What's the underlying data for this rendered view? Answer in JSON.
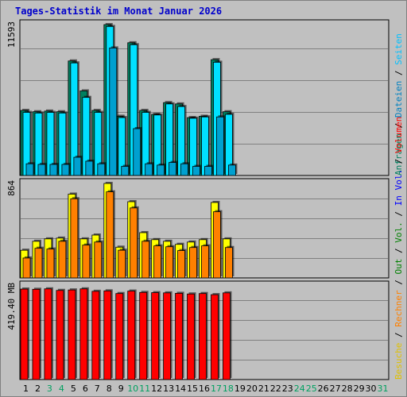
{
  "title": "Tages-Statistik im Monat Januar 2026",
  "colors": {
    "anfragen": "#008040",
    "dateien": "#00e0ff",
    "seiten": "#00ccff",
    "besuche": "#ffff00",
    "rechner": "#ff8000",
    "volumen": "#ff0000",
    "vol_in": "#0000ff",
    "vol_out": "#008000",
    "axis": "#0000cc",
    "panel_bg": "#c0c0c0",
    "grid": "#808080"
  },
  "labels": {
    "panel1": [
      {
        "text": "Anfragen",
        "color": "#008060"
      },
      {
        "text": "/",
        "color": "#000000"
      },
      {
        "text": "Dateien",
        "color": "#0080c0"
      },
      {
        "text": "/",
        "color": "#000000"
      },
      {
        "text": "Seiten",
        "color": "#00c0ff"
      }
    ],
    "panel2": [
      {
        "text": "Besuche",
        "color": "#e0c000"
      },
      {
        "text": "/",
        "color": "#000000"
      },
      {
        "text": "Rechner",
        "color": "#ff8000"
      },
      {
        "text": "/",
        "color": "#000000"
      },
      {
        "text": "Out",
        "color": "#008000"
      },
      {
        "text": "/",
        "color": "#000000"
      },
      {
        "text": "Vol.",
        "color": "#008000"
      },
      {
        "text": "/",
        "color": "#000000"
      },
      {
        "text": "In",
        "color": "#0000ff"
      },
      {
        "text": "Vol.",
        "color": "#0000ff"
      },
      {
        "text": "/",
        "color": "#000000"
      },
      {
        "text": "Volumen",
        "color": "#ff0000"
      }
    ]
  },
  "chart_data": {
    "type": "bar",
    "title": "Tages-Statistik im Monat Januar 2026",
    "categories": [
      "1",
      "2",
      "3",
      "4",
      "5",
      "6",
      "7",
      "8",
      "9",
      "10",
      "11",
      "12",
      "13",
      "14",
      "15",
      "16",
      "17",
      "18",
      "19",
      "20",
      "21",
      "22",
      "23",
      "24",
      "25",
      "26",
      "27",
      "28",
      "29",
      "30",
      "31"
    ],
    "weekend_days": [
      "3",
      "4",
      "10",
      "11",
      "17",
      "18",
      "24",
      "25",
      "31"
    ],
    "panels": [
      {
        "ymax_label": "11593",
        "ylim": [
          0,
          11593
        ],
        "series": [
          {
            "name": "Anfragen",
            "values": [
              5000,
              4900,
              4950,
              4900,
              8800,
              6500,
              5000,
              11593,
              4550,
              10200,
              5000,
              4700,
              5600,
              5500,
              4450,
              4550,
              8900,
              4900
            ]
          },
          {
            "name": "Dateien",
            "values": [
              4850,
              4800,
              4850,
              4800,
              8650,
              6000,
              4850,
              11450,
              4450,
              10050,
              4850,
              4650,
              5500,
              5300,
              4400,
              4500,
              8700,
              4700
            ]
          },
          {
            "name": "Seiten",
            "values": [
              900,
              850,
              850,
              850,
              1400,
              1100,
              900,
              9800,
              700,
              3600,
              900,
              800,
              1000,
              900,
              700,
              700,
              4500,
              800
            ]
          }
        ]
      },
      {
        "ymax_label": "864",
        "ylim": [
          0,
          864
        ],
        "series": [
          {
            "name": "Besuche",
            "values": [
              253,
              335,
              357,
              364,
              766,
              357,
              392,
              864,
              281,
              697,
              414,
              350,
              335,
              307,
              328,
              350,
              690,
              357
            ]
          },
          {
            "name": "Rechner",
            "values": [
              182,
              271,
              264,
              335,
              724,
              300,
              328,
              787,
              253,
              640,
              335,
              293,
              285,
              250,
              278,
              293,
              605,
              278
            ]
          }
        ]
      },
      {
        "ymax_label": "419.40 MB",
        "ylim": [
          0,
          419.4
        ],
        "series": [
          {
            "name": "Volumen",
            "values": [
              405,
              404,
              406,
              399,
              401,
              406,
              395,
              397,
              385,
              396,
              390,
              389,
              388,
              386,
              383,
              385,
              380,
              388
            ]
          }
        ]
      }
    ]
  }
}
